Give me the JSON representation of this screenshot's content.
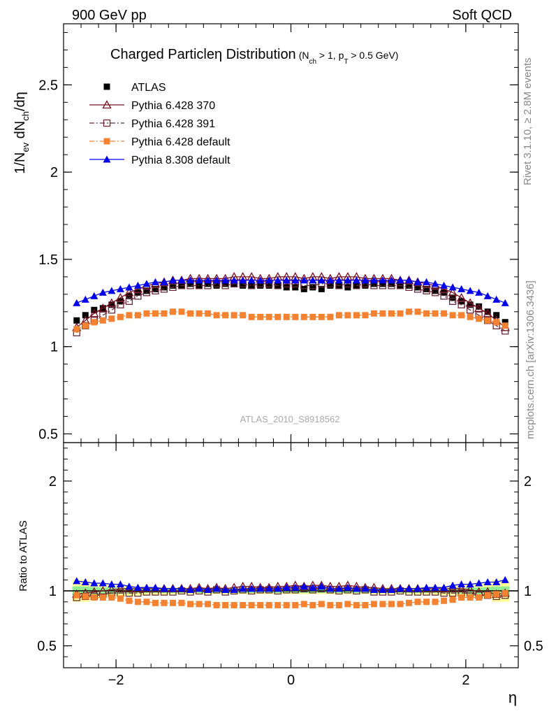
{
  "header": {
    "left": "900 GeV pp",
    "right": "Soft QCD"
  },
  "side": {
    "rivet": "Rivet 3.1.10, ≥ 2.8M events",
    "mcplots": "mcplots.cern.ch [arXiv:1306.3436]"
  },
  "chart_data": [
    {
      "type": "scatter",
      "panel": "main",
      "title": "Charged Particleη Distribution",
      "title_cond": {
        "n": "N",
        "n_sub": "ch",
        "mid": " > 1, p",
        "p_sub": "T",
        "end": " > 0.5 GeV)"
      },
      "ylabel": "1/N_ev dN_ch/dη",
      "ylabel_parts": {
        "a": "1/N",
        "a_sub": "ev",
        "b": " dN",
        "b_sub": "ch",
        "c": "/dη"
      },
      "watermark": "ATLAS_2010_S8918562",
      "xlim": [
        -2.6,
        2.6
      ],
      "ylim": [
        0.45,
        2.85
      ],
      "yticks": [
        0.5,
        1,
        1.5,
        2,
        2.5
      ],
      "ytick_labels": [
        "0.5",
        "1",
        "1.5",
        "2",
        "2.5"
      ],
      "legend_position": "top-left",
      "x": [
        -2.45,
        -2.35,
        -2.25,
        -2.15,
        -2.05,
        -1.95,
        -1.85,
        -1.75,
        -1.65,
        -1.55,
        -1.45,
        -1.35,
        -1.25,
        -1.15,
        -1.05,
        -0.95,
        -0.85,
        -0.75,
        -0.65,
        -0.55,
        -0.45,
        -0.35,
        -0.25,
        -0.15,
        -0.05,
        0.05,
        0.15,
        0.25,
        0.35,
        0.45,
        0.55,
        0.65,
        0.75,
        0.85,
        0.95,
        1.05,
        1.15,
        1.25,
        1.35,
        1.45,
        1.55,
        1.65,
        1.75,
        1.85,
        1.95,
        2.05,
        2.15,
        2.25,
        2.35,
        2.45
      ],
      "series": [
        {
          "name": "ATLAS",
          "color": "#000000",
          "marker": "square-filled",
          "line": "none",
          "values": [
            1.15,
            1.18,
            1.21,
            1.22,
            1.24,
            1.26,
            1.29,
            1.31,
            1.32,
            1.33,
            1.34,
            1.35,
            1.35,
            1.36,
            1.35,
            1.36,
            1.35,
            1.36,
            1.36,
            1.35,
            1.35,
            1.35,
            1.35,
            1.35,
            1.34,
            1.34,
            1.33,
            1.34,
            1.33,
            1.35,
            1.35,
            1.34,
            1.35,
            1.35,
            1.36,
            1.36,
            1.36,
            1.35,
            1.35,
            1.34,
            1.33,
            1.32,
            1.31,
            1.28,
            1.26,
            1.24,
            1.23,
            1.2,
            1.18,
            1.14
          ]
        },
        {
          "name": "Pythia 6.428 370",
          "color": "#7a0f1e",
          "marker": "triangle-open",
          "line": "solid",
          "values": [
            1.11,
            1.15,
            1.19,
            1.22,
            1.25,
            1.28,
            1.31,
            1.33,
            1.35,
            1.36,
            1.37,
            1.38,
            1.38,
            1.39,
            1.39,
            1.39,
            1.39,
            1.39,
            1.4,
            1.4,
            1.4,
            1.39,
            1.39,
            1.4,
            1.4,
            1.4,
            1.39,
            1.4,
            1.4,
            1.39,
            1.4,
            1.4,
            1.4,
            1.39,
            1.39,
            1.39,
            1.39,
            1.38,
            1.38,
            1.37,
            1.36,
            1.35,
            1.33,
            1.31,
            1.28,
            1.25,
            1.22,
            1.19,
            1.15,
            1.11
          ]
        },
        {
          "name": "Pythia 6.428 391",
          "color": "#6b2a3a",
          "marker": "square-open",
          "line": "dashdot",
          "values": [
            1.08,
            1.12,
            1.15,
            1.18,
            1.21,
            1.24,
            1.26,
            1.29,
            1.31,
            1.32,
            1.33,
            1.34,
            1.35,
            1.35,
            1.35,
            1.35,
            1.36,
            1.35,
            1.36,
            1.36,
            1.35,
            1.36,
            1.36,
            1.35,
            1.36,
            1.36,
            1.35,
            1.35,
            1.36,
            1.36,
            1.35,
            1.36,
            1.35,
            1.36,
            1.35,
            1.35,
            1.35,
            1.35,
            1.34,
            1.33,
            1.32,
            1.31,
            1.29,
            1.26,
            1.24,
            1.21,
            1.18,
            1.15,
            1.12,
            1.09
          ]
        },
        {
          "name": "Pythia 6.428 default",
          "color": "#f58231",
          "marker": "square-filled",
          "line": "dashdot",
          "values": [
            1.1,
            1.12,
            1.14,
            1.15,
            1.16,
            1.17,
            1.18,
            1.18,
            1.19,
            1.19,
            1.19,
            1.2,
            1.2,
            1.19,
            1.19,
            1.19,
            1.18,
            1.18,
            1.18,
            1.18,
            1.17,
            1.17,
            1.17,
            1.17,
            1.17,
            1.17,
            1.17,
            1.17,
            1.17,
            1.17,
            1.18,
            1.18,
            1.18,
            1.18,
            1.19,
            1.19,
            1.19,
            1.19,
            1.2,
            1.2,
            1.19,
            1.19,
            1.19,
            1.18,
            1.18,
            1.17,
            1.16,
            1.15,
            1.14,
            1.12
          ]
        },
        {
          "name": "Pythia 8.308 default",
          "color": "#0000ee",
          "marker": "triangle-filled",
          "line": "solid",
          "values": [
            1.25,
            1.27,
            1.29,
            1.31,
            1.32,
            1.33,
            1.34,
            1.35,
            1.36,
            1.37,
            1.37,
            1.38,
            1.38,
            1.38,
            1.38,
            1.38,
            1.38,
            1.38,
            1.38,
            1.38,
            1.38,
            1.38,
            1.38,
            1.38,
            1.38,
            1.38,
            1.38,
            1.38,
            1.38,
            1.38,
            1.38,
            1.38,
            1.38,
            1.38,
            1.38,
            1.38,
            1.38,
            1.38,
            1.38,
            1.37,
            1.37,
            1.36,
            1.35,
            1.34,
            1.33,
            1.32,
            1.31,
            1.29,
            1.27,
            1.25
          ]
        }
      ]
    },
    {
      "type": "scatter",
      "panel": "ratio",
      "ylabel": "Ratio to ATLAS",
      "xlabel": "η",
      "xlim": [
        -2.6,
        2.6
      ],
      "ylim": [
        0.3,
        2.35
      ],
      "xticks": [
        -2,
        0,
        2
      ],
      "xtick_labels": [
        "−2",
        "0",
        "2"
      ],
      "yticks": [
        0.5,
        1,
        2
      ],
      "ytick_labels": [
        "0.5",
        "1",
        "2"
      ],
      "band_colors": {
        "stat": "#90ee90",
        "total": "#ffff99"
      },
      "bands": {
        "edges": [
          -2.5,
          -2.4,
          -2.3,
          -2.2,
          -2.1,
          -2.0,
          -1.8,
          -1.6,
          -1.4,
          -1.2,
          -1.0,
          1.0,
          1.2,
          1.4,
          1.6,
          1.8,
          2.0,
          2.1,
          2.2,
          2.3,
          2.4,
          2.5
        ],
        "total_half": [
          0.1,
          0.1,
          0.07,
          0.07,
          0.06,
          0.05,
          0.04,
          0.035,
          0.03,
          0.03,
          0.03,
          0.03,
          0.03,
          0.035,
          0.04,
          0.05,
          0.06,
          0.07,
          0.07,
          0.1,
          0.1
        ],
        "stat_half": [
          0.04,
          0.04,
          0.035,
          0.03,
          0.03,
          0.025,
          0.02,
          0.02,
          0.02,
          0.02,
          0.02,
          0.02,
          0.02,
          0.02,
          0.02,
          0.025,
          0.03,
          0.03,
          0.035,
          0.04,
          0.04
        ]
      },
      "x": [
        -2.45,
        -2.35,
        -2.25,
        -2.15,
        -2.05,
        -1.95,
        -1.85,
        -1.75,
        -1.65,
        -1.55,
        -1.45,
        -1.35,
        -1.25,
        -1.15,
        -1.05,
        -0.95,
        -0.85,
        -0.75,
        -0.65,
        -0.55,
        -0.45,
        -0.35,
        -0.25,
        -0.15,
        -0.05,
        0.05,
        0.15,
        0.25,
        0.35,
        0.45,
        0.55,
        0.65,
        0.75,
        0.85,
        0.95,
        1.05,
        1.15,
        1.25,
        1.35,
        1.45,
        1.55,
        1.65,
        1.75,
        1.85,
        1.95,
        2.05,
        2.15,
        2.25,
        2.35,
        2.45
      ],
      "series": [
        {
          "name": "Pythia 6.428 370",
          "color": "#7a0f1e",
          "marker": "triangle-open",
          "line": "solid",
          "values": [
            0.97,
            0.98,
            0.99,
            1.0,
            1.01,
            1.02,
            1.02,
            1.02,
            1.02,
            1.02,
            1.02,
            1.02,
            1.02,
            1.02,
            1.03,
            1.02,
            1.03,
            1.02,
            1.03,
            1.04,
            1.04,
            1.03,
            1.03,
            1.04,
            1.04,
            1.05,
            1.04,
            1.05,
            1.05,
            1.04,
            1.04,
            1.05,
            1.04,
            1.03,
            1.03,
            1.02,
            1.02,
            1.02,
            1.02,
            1.02,
            1.02,
            1.02,
            1.02,
            1.02,
            1.02,
            1.01,
            0.99,
            0.99,
            0.97,
            0.98
          ]
        },
        {
          "name": "Pythia 6.428 391",
          "color": "#6b2a3a",
          "marker": "square-open",
          "line": "dashdot",
          "values": [
            0.94,
            0.95,
            0.95,
            0.97,
            0.98,
            0.98,
            0.98,
            0.98,
            0.99,
            0.99,
            0.99,
            0.99,
            1.0,
            0.99,
            1.0,
            0.99,
            1.01,
            0.99,
            1.0,
            1.01,
            1.0,
            1.01,
            1.01,
            1.0,
            1.01,
            1.01,
            1.02,
            1.01,
            1.02,
            1.01,
            1.0,
            1.01,
            1.0,
            1.01,
            0.99,
            0.99,
            0.99,
            1.0,
            0.99,
            0.99,
            0.99,
            0.99,
            0.98,
            0.98,
            0.98,
            0.98,
            0.96,
            0.96,
            0.95,
            0.96
          ]
        },
        {
          "name": "Pythia 6.428 default",
          "color": "#f58231",
          "marker": "square-filled",
          "line": "dashdot",
          "values": [
            0.96,
            0.95,
            0.94,
            0.94,
            0.94,
            0.93,
            0.91,
            0.9,
            0.9,
            0.89,
            0.89,
            0.89,
            0.89,
            0.88,
            0.88,
            0.88,
            0.87,
            0.87,
            0.87,
            0.87,
            0.87,
            0.87,
            0.87,
            0.87,
            0.87,
            0.87,
            0.88,
            0.87,
            0.88,
            0.87,
            0.87,
            0.88,
            0.87,
            0.87,
            0.88,
            0.88,
            0.88,
            0.88,
            0.89,
            0.9,
            0.9,
            0.9,
            0.91,
            0.92,
            0.94,
            0.94,
            0.94,
            0.96,
            0.97,
            0.98
          ]
        },
        {
          "name": "Pythia 8.308 default",
          "color": "#0000ee",
          "marker": "triangle-filled",
          "line": "solid",
          "values": [
            1.09,
            1.08,
            1.07,
            1.07,
            1.06,
            1.06,
            1.04,
            1.03,
            1.03,
            1.03,
            1.02,
            1.02,
            1.02,
            1.01,
            1.02,
            1.01,
            1.02,
            1.01,
            1.01,
            1.02,
            1.02,
            1.02,
            1.02,
            1.02,
            1.03,
            1.03,
            1.04,
            1.03,
            1.04,
            1.02,
            1.02,
            1.03,
            1.02,
            1.02,
            1.01,
            1.01,
            1.01,
            1.02,
            1.02,
            1.02,
            1.03,
            1.03,
            1.03,
            1.05,
            1.06,
            1.06,
            1.07,
            1.08,
            1.08,
            1.1
          ]
        }
      ]
    }
  ]
}
